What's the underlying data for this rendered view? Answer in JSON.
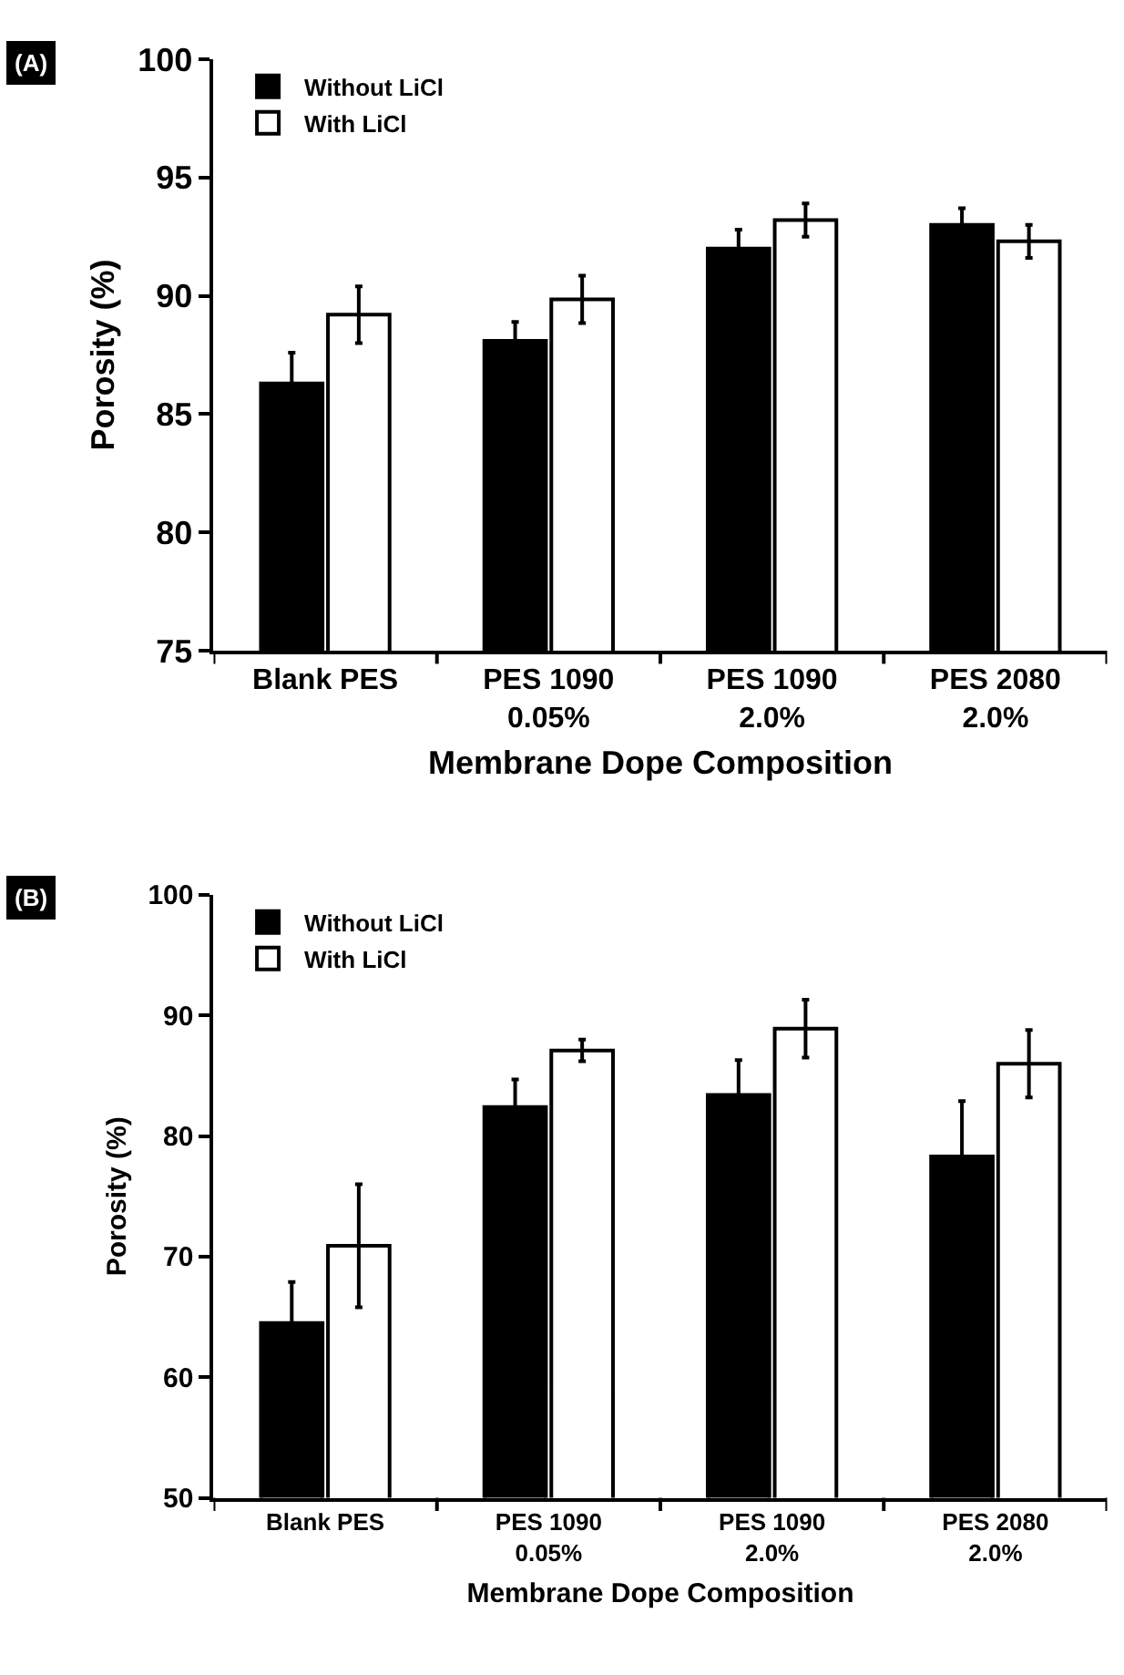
{
  "chart_data": [
    {
      "type": "bar",
      "annotations": [
        "(A)"
      ],
      "xlabel": "Membrane Dope Composition",
      "ylabel": "Porosity (%)",
      "categories": [
        "Blank PES",
        "PES 1090\n0.05%",
        "PES 1090\n2.0%",
        "PES 2080\n2.0%"
      ],
      "series": [
        {
          "name": "Without LiCl",
          "color": "#000000",
          "values": [
            86.3,
            88.1,
            92.0,
            93.0
          ],
          "errors": [
            1.3,
            0.8,
            0.8,
            0.7
          ]
        },
        {
          "name": "With LiCl",
          "color": "#ffffff",
          "values": [
            89.2,
            89.85,
            93.2,
            92.3
          ],
          "errors": [
            1.2,
            1.0,
            0.7,
            0.7
          ]
        }
      ],
      "ylim": [
        75,
        100
      ],
      "yticks": [
        75,
        80,
        85,
        90,
        95,
        100
      ],
      "legend": "top left"
    },
    {
      "type": "bar",
      "annotations": [
        "(B)"
      ],
      "xlabel": "Membrane Dope Composition",
      "ylabel": "Porosity (%)",
      "categories": [
        "Blank PES",
        "PES 1090\n0.05%",
        "PES 1090\n2.0%",
        "PES 2080\n2.0%"
      ],
      "series": [
        {
          "name": "Without LiCl",
          "color": "#000000",
          "values": [
            64.5,
            82.4,
            83.4,
            78.3
          ],
          "errors": [
            3.4,
            2.3,
            2.9,
            4.6
          ]
        },
        {
          "name": "With LiCl",
          "color": "#ffffff",
          "values": [
            70.9,
            87.1,
            88.9,
            86.0
          ],
          "errors": [
            5.1,
            0.9,
            2.4,
            2.8
          ]
        }
      ],
      "ylim": [
        50,
        100
      ],
      "yticks": [
        50,
        60,
        70,
        80,
        90,
        100
      ],
      "legend": "top left"
    }
  ]
}
